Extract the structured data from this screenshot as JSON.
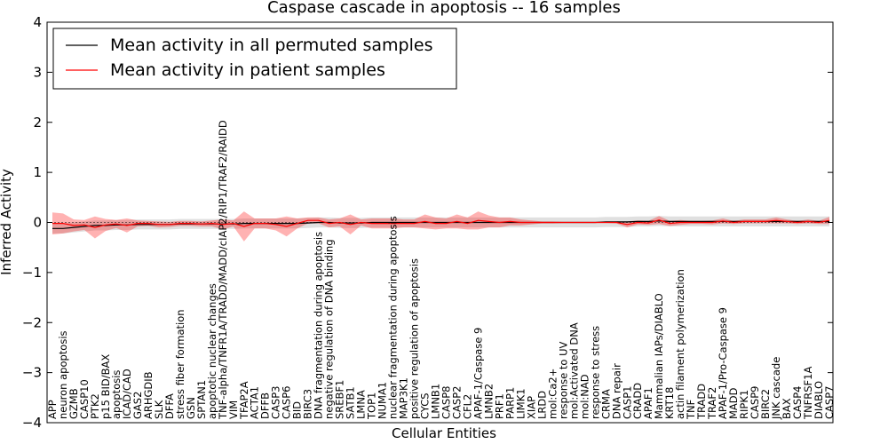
{
  "chart_data": {
    "type": "line",
    "title": "Caspase cascade in apoptosis -- 16 samples",
    "xlabel": "Cellular Entities",
    "ylabel": "Inferred Activity",
    "ylim": [
      -4,
      4
    ],
    "yticks": [
      -4,
      -3,
      -2,
      -1,
      0,
      1,
      2,
      3,
      4
    ],
    "legend_position": "top-left",
    "categories": [
      "APP",
      "neuron apoptosis",
      "GZMB",
      "CASP10",
      "PTK2",
      "p15 BID/BAX",
      "apoptosis",
      "ICAD/CAD",
      "GAS2",
      "ARHGDIB",
      "SLK",
      "DFFA",
      "stress fiber formation",
      "GSN",
      "SPTAN1",
      "apoptotic nuclear changes",
      "TNF-alpha/TNFR1A/TRADD/MADD/cIAP2/RIP1/TRAF2/RAIDD",
      "VIM",
      "TFAP2A",
      "ACTA1",
      "DFFB",
      "CASP3",
      "CASP6",
      "BID",
      "BIRC3",
      "DNA fragmentation during apoptosis",
      "negative regulation of DNA binding",
      "SREBF1",
      "SATB1",
      "LMNA",
      "TOP1",
      "NUMA1",
      "nuclear fragmentation during apoptosis",
      "MAP3K1",
      "positive regulation of apoptosis",
      "CYCS",
      "LMNB1",
      "CASP8",
      "CASP2",
      "CFL2",
      "APAF-1/Caspase 9",
      "LMNB2",
      "PRF1",
      "PARP1",
      "LIMK1",
      "XIAP",
      "LRDD",
      "mol:Ca2+",
      "response to UV",
      "mol:Activated DNA",
      "mol:NAD",
      "response to stress",
      "CRMA",
      "DNA repair",
      "CASP1",
      "CRADD",
      "APAF1",
      "Mammalian IAPs/DIABLO",
      "KRT18",
      "actin filament polymerization",
      "TNF",
      "TRADD",
      "TRAF2",
      "APAF-1/Pro-Caspase 9",
      "MADD",
      "RIPK1",
      "CASP9",
      "BIRC2",
      "JNK cascade",
      "BAX",
      "CASP4",
      "TNFRSF1A",
      "DIABLO",
      "CASP7"
    ],
    "series": [
      {
        "name": "Mean activity in all permuted samples",
        "color": "#000000",
        "values": [
          -0.12,
          -0.12,
          -0.1,
          -0.08,
          -0.06,
          -0.06,
          -0.05,
          -0.05,
          -0.04,
          -0.04,
          -0.04,
          -0.04,
          -0.03,
          -0.03,
          -0.03,
          -0.03,
          -0.03,
          -0.03,
          -0.02,
          -0.02,
          -0.02,
          -0.02,
          -0.02,
          -0.02,
          -0.01,
          0.0,
          0.0,
          -0.01,
          -0.01,
          -0.01,
          0.0,
          0.0,
          0.0,
          0.0,
          0.0,
          0.0,
          0.0,
          0.0,
          0.0,
          0.0,
          0.0,
          0.0,
          0.0,
          0.0,
          0.0,
          0.0,
          0.0,
          0.0,
          0.0,
          0.0,
          0.0,
          0.0,
          0.01,
          0.01,
          0.01,
          0.02,
          0.02,
          0.03,
          0.02,
          0.02,
          0.02,
          0.02,
          0.02,
          0.02,
          0.02,
          0.02,
          0.02,
          0.02,
          0.02,
          0.02,
          0.02,
          0.02,
          0.02,
          0.02
        ],
        "band": 0.1
      },
      {
        "name": "Mean activity in patient samples",
        "color": "#ff0000",
        "values": [
          -0.02,
          -0.02,
          -0.06,
          -0.05,
          -0.1,
          -0.05,
          -0.03,
          -0.06,
          -0.02,
          -0.02,
          -0.04,
          -0.04,
          -0.02,
          -0.02,
          -0.03,
          -0.02,
          -0.04,
          -0.02,
          -0.08,
          -0.02,
          -0.02,
          -0.04,
          -0.08,
          -0.02,
          0.04,
          0.04,
          -0.02,
          0.0,
          -0.04,
          0.0,
          -0.02,
          -0.02,
          -0.02,
          -0.02,
          -0.02,
          0.02,
          -0.02,
          -0.02,
          0.02,
          -0.02,
          0.04,
          0.02,
          0.0,
          0.02,
          0.0,
          0.0,
          0.0,
          0.0,
          0.0,
          0.0,
          0.0,
          0.0,
          0.0,
          0.0,
          -0.04,
          0.0,
          -0.01,
          0.05,
          -0.02,
          0.0,
          0.0,
          0.0,
          0.0,
          0.03,
          0.0,
          0.02,
          0.02,
          0.02,
          0.04,
          0.02,
          0.0,
          0.02,
          0.0,
          0.04
        ],
        "band": [
          0.22,
          0.2,
          0.12,
          0.1,
          0.22,
          0.12,
          0.08,
          0.14,
          0.06,
          0.05,
          0.06,
          0.05,
          0.05,
          0.05,
          0.05,
          0.06,
          0.1,
          0.06,
          0.3,
          0.1,
          0.1,
          0.12,
          0.2,
          0.1,
          0.06,
          0.06,
          0.08,
          0.08,
          0.2,
          0.06,
          0.1,
          0.1,
          0.1,
          0.08,
          0.08,
          0.14,
          0.12,
          0.1,
          0.14,
          0.12,
          0.18,
          0.12,
          0.1,
          0.08,
          0.06,
          0.04,
          0.02,
          0.02,
          0.01,
          0.01,
          0.01,
          0.01,
          0.01,
          0.02,
          0.06,
          0.04,
          0.04,
          0.08,
          0.05,
          0.05,
          0.03,
          0.03,
          0.04,
          0.05,
          0.03,
          0.04,
          0.04,
          0.04,
          0.06,
          0.04,
          0.03,
          0.04,
          0.03,
          0.07
        ]
      }
    ]
  }
}
